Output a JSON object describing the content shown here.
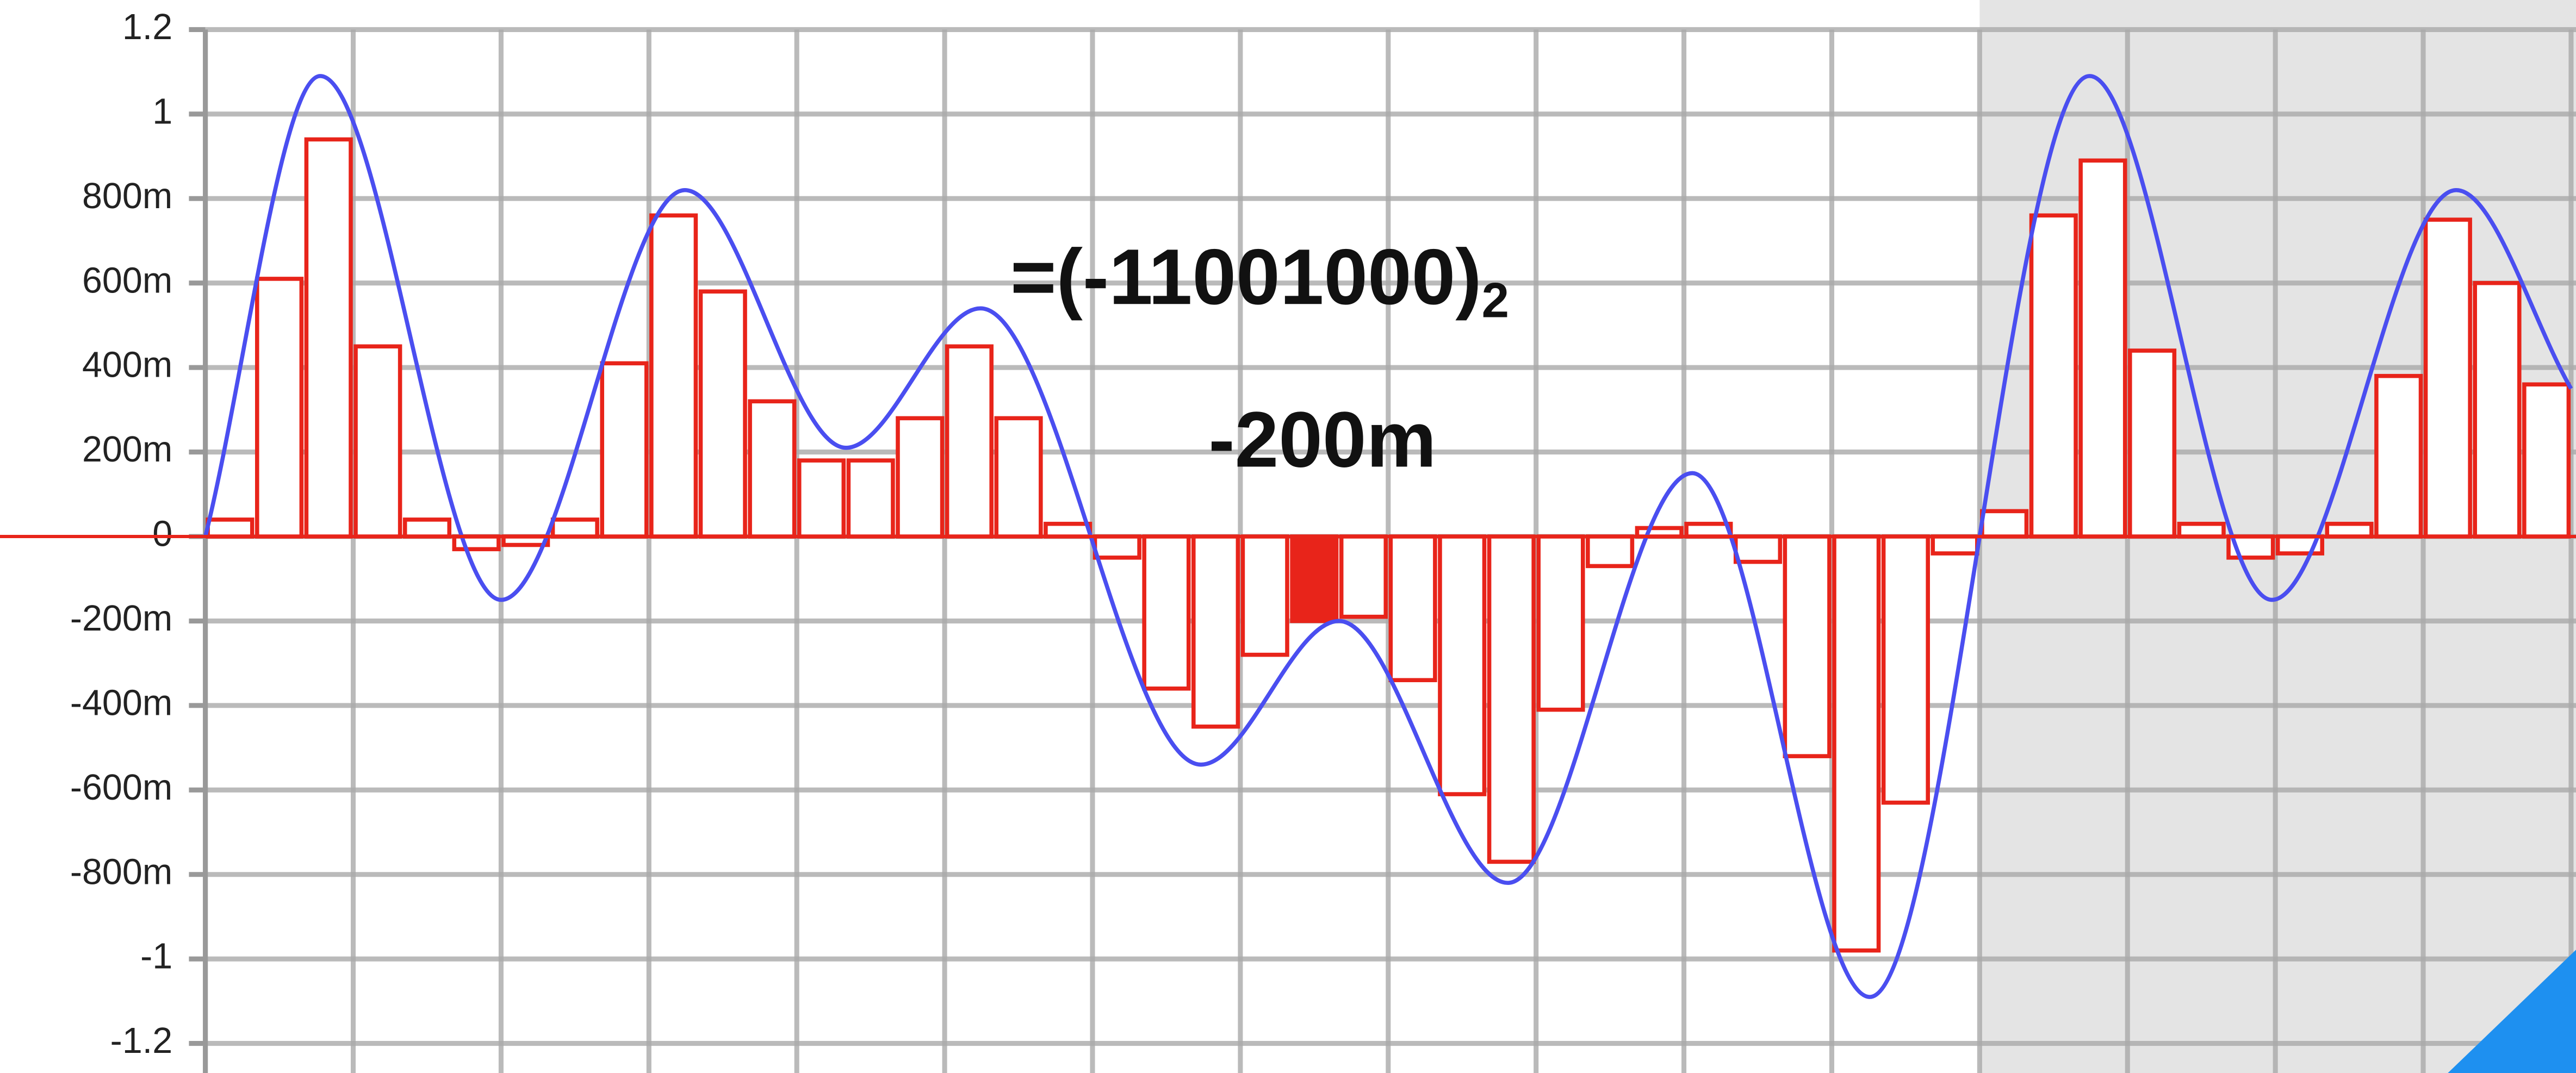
{
  "chart_data": {
    "type": "bar",
    "categories": [
      null,
      null,
      null,
      null,
      null,
      null,
      null,
      null,
      null,
      null,
      null,
      null,
      null,
      null,
      null,
      null,
      null,
      null,
      null,
      null,
      null,
      null,
      null,
      null,
      null,
      null,
      null,
      null,
      null,
      null,
      null,
      null,
      null,
      null,
      null,
      null,
      null,
      null,
      null,
      null,
      null,
      null,
      null,
      null,
      null,
      null,
      null,
      null
    ],
    "series": [
      {
        "color": "#e8241a",
        "values": [
          0.04,
          0.61,
          0.94,
          0.45,
          0.04,
          -0.03,
          -0.02,
          0.04,
          0.41,
          0.76,
          0.58,
          0.32,
          0.18,
          0.18,
          0.28,
          0.45,
          0.28,
          0.03,
          -0.05,
          -0.36,
          -0.45,
          -0.28,
          -0.2,
          -0.19,
          -0.34,
          -0.61,
          -0.77,
          -0.41,
          -0.07,
          0.02,
          0.03,
          -0.06,
          -0.52,
          -0.98,
          -0.63,
          -0.04,
          0.06,
          0.76,
          0.89,
          0.44,
          0.03,
          -0.05,
          -0.04,
          0.03,
          0.38,
          0.75,
          0.6,
          0.36
        ]
      },
      {
        "color": "#4a4ef0",
        "type": "line",
        "x": [
          0,
          2.33,
          6.0,
          9.73,
          13.0,
          15.73,
          20.2,
          23.0,
          26.43,
          30.17,
          33.77,
          38.23,
          41.93,
          45.67,
          48
        ],
        "values": [
          0,
          1.09,
          -0.15,
          0.82,
          0.21,
          0.54,
          -0.54,
          -0.2,
          -0.82,
          0.15,
          -1.09,
          1.09,
          -0.15,
          0.82,
          0.35
        ]
      }
    ],
    "highlight": 22,
    "annotation": "=(-11001000)",
    "annotation_base": "2",
    "value_label": "-200m",
    "xlim": [
      0,
      48
    ],
    "xticks": [
      0,
      3,
      6,
      9,
      12,
      15,
      18,
      21,
      24,
      27,
      30,
      33,
      36,
      39,
      42,
      45,
      48
    ],
    "shaded_xrange": [
      36,
      48
    ],
    "ylim": [
      -1.2,
      1.2
    ],
    "yticks": [
      1.2,
      1,
      {
        "value": 0.8,
        "label": "800m"
      },
      {
        "value": 0.6,
        "label": "600m"
      },
      {
        "value": 0.4,
        "label": "400m"
      },
      {
        "value": 0.2,
        "label": "200m"
      },
      0,
      {
        "value": -0.2,
        "label": "-200m"
      },
      {
        "value": -0.4,
        "label": "-400m"
      },
      {
        "value": -0.6,
        "label": "-600m"
      },
      {
        "value": -0.8,
        "label": "-800m"
      },
      -1,
      -1.2
    ],
    "grid": true
  }
}
